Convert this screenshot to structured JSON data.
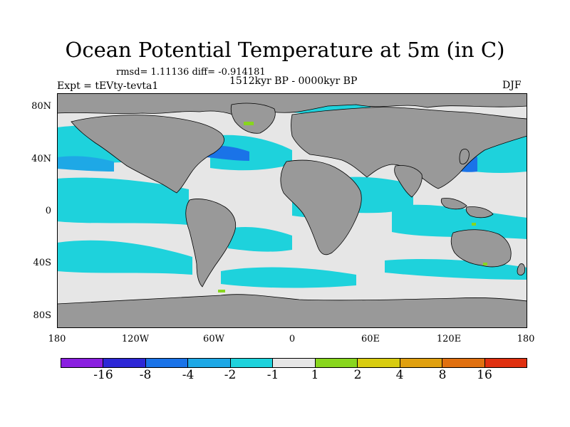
{
  "title": "Ocean Potential Temperature at 5m (in C)",
  "stats": "rmsd= 1.11136 diff= -0.914181",
  "period": "1512kyr BP - 0000kyr BP",
  "experiment": "Expt = tEVty-tevta1",
  "season": "DJF",
  "lat_labels": [
    "80N",
    "40N",
    "0",
    "40S",
    "80S"
  ],
  "lon_labels": [
    "180",
    "120W",
    "60W",
    "0",
    "60E",
    "120E",
    "180"
  ],
  "colorbar": {
    "labels": [
      "-16",
      "-8",
      "-4",
      "-2",
      "-1",
      "1",
      "2",
      "4",
      "8",
      "16"
    ],
    "colors": [
      "#8a1fe0",
      "#2d27d6",
      "#1a73e8",
      "#1ea8e6",
      "#1ed2dc",
      "#e6e6e6",
      "#88d61e",
      "#d8cc10",
      "#e0a010",
      "#e07010",
      "#e03010"
    ]
  },
  "colors": {
    "land": "#999999",
    "ocean_neutral": "#e6e6e6",
    "cyan": "#1ed2dc",
    "mid_blue": "#1ea8e6",
    "blue": "#1a73e8"
  }
}
